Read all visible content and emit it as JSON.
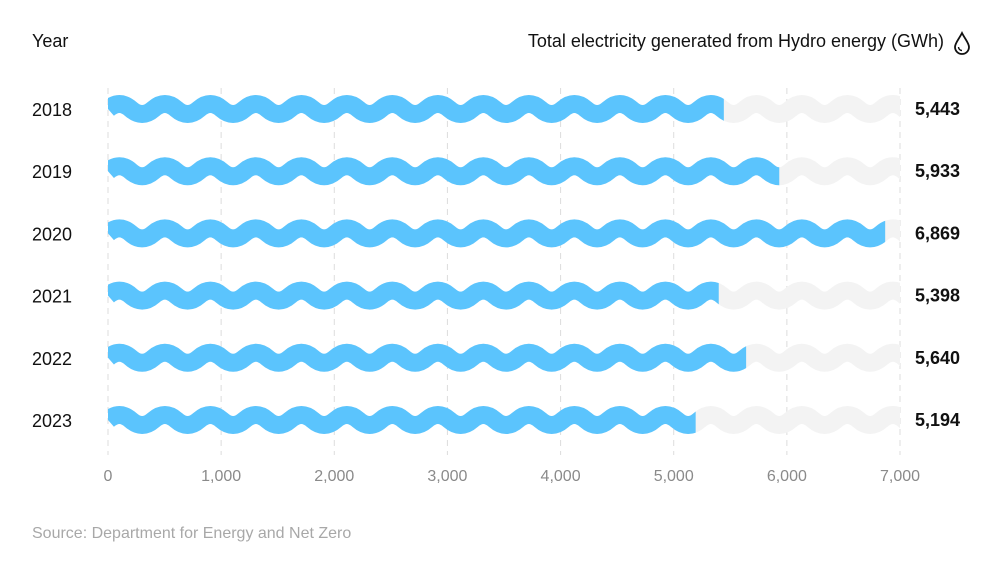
{
  "chart_data": {
    "type": "bar",
    "title": "",
    "category_header": "Year",
    "value_header": "Total electricity generated from Hydro energy (GWh)",
    "header_icon": "water-drop-icon",
    "categories": [
      "2018",
      "2019",
      "2020",
      "2021",
      "2022",
      "2023"
    ],
    "values": [
      5443,
      5933,
      6869,
      5398,
      5640,
      5194
    ],
    "value_labels": [
      "5,443",
      "5,933",
      "6,869",
      "5,398",
      "5,640",
      "5,194"
    ],
    "xlim": [
      0,
      7000
    ],
    "x_ticks": [
      0,
      1000,
      2000,
      3000,
      4000,
      5000,
      6000,
      7000
    ],
    "x_tick_labels": [
      "0",
      "1,000",
      "2,000",
      "3,000",
      "4,000",
      "5,000",
      "6,000",
      "7,000"
    ],
    "orientation": "horizontal",
    "bar_style": "wave",
    "grid": true,
    "colors": {
      "bar": "#5bc4fd",
      "track": "#f3f3f3",
      "grid": "#dddddd"
    }
  },
  "source": "Source: Department for Energy and Net Zero"
}
